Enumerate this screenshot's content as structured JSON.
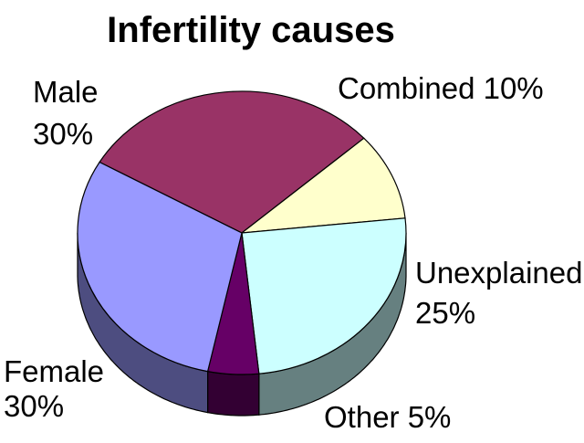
{
  "chart_data": {
    "type": "pie",
    "title": "Infertility causes",
    "slices": [
      {
        "name": "Male",
        "value": 30,
        "label_lines": [
          "Male",
          "30%"
        ],
        "color": "#993366",
        "side_color": "#4d1a33"
      },
      {
        "name": "Combined",
        "value": 10,
        "label_lines": [
          "Combined 10%"
        ],
        "color": "#ffffcc",
        "side_color": "#808066"
      },
      {
        "name": "Unexplained",
        "value": 25,
        "label_lines": [
          "Unexplained",
          "25%"
        ],
        "color": "#ccffff",
        "side_color": "#668080"
      },
      {
        "name": "Other",
        "value": 5,
        "label_lines": [
          "Other 5%"
        ],
        "color": "#660066",
        "side_color": "#330033"
      },
      {
        "name": "Female",
        "value": 30,
        "label_lines": [
          "Female",
          "30%"
        ],
        "color": "#9999ff",
        "side_color": "#4d4d80"
      }
    ],
    "3d": true
  }
}
